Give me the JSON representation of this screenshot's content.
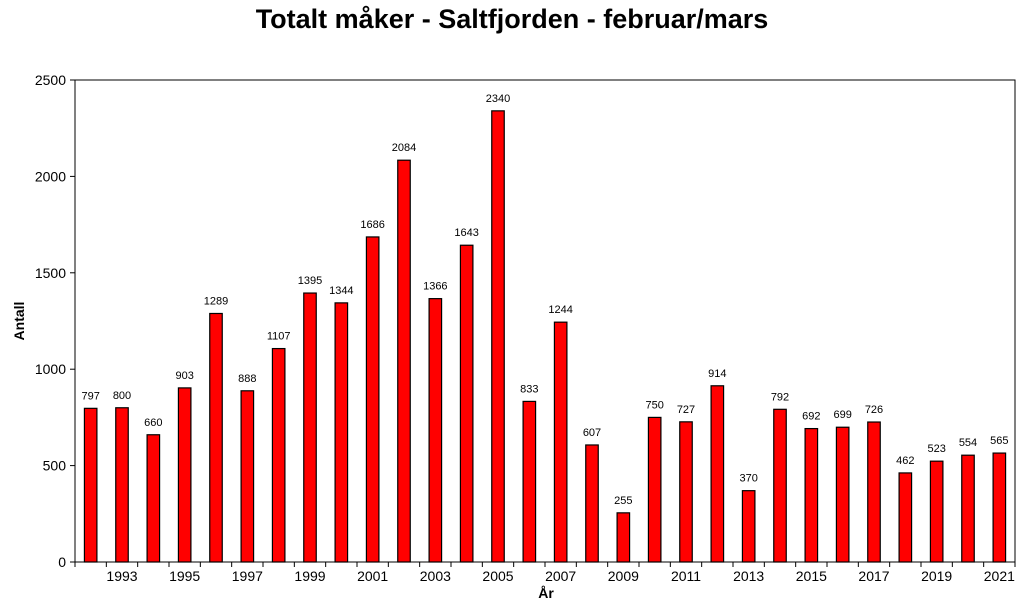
{
  "chart_data": {
    "type": "bar",
    "title": "Totalt måker - Saltfjorden - februar/mars",
    "xlabel": "År",
    "ylabel": "Antall",
    "ylim": [
      0,
      2500
    ],
    "yticks": [
      0,
      500,
      1000,
      1500,
      2000,
      2500
    ],
    "categories": [
      "1992",
      "1993",
      "1994",
      "1995",
      "1996",
      "1997",
      "1998",
      "1999",
      "2000",
      "2001",
      "2002",
      "2003",
      "2004",
      "2005",
      "2006",
      "2007",
      "2008",
      "2009",
      "2010",
      "2011",
      "2012",
      "2013",
      "2014",
      "2015",
      "2016",
      "2017",
      "2018",
      "2019",
      "2020",
      "2021"
    ],
    "xtick_labels": [
      "1993",
      "1995",
      "1997",
      "1999",
      "2001",
      "2003",
      "2005",
      "2007",
      "2009",
      "2011",
      "2013",
      "2015",
      "2017",
      "2019",
      "2021"
    ],
    "values": [
      797,
      800,
      660,
      903,
      1289,
      888,
      1107,
      1395,
      1344,
      1686,
      2084,
      1366,
      1643,
      2340,
      833,
      1244,
      607,
      255,
      750,
      727,
      914,
      370,
      792,
      692,
      699,
      726,
      462,
      523,
      554,
      565
    ],
    "bar_color": "#ff0000",
    "grid": false,
    "legend": "none"
  }
}
